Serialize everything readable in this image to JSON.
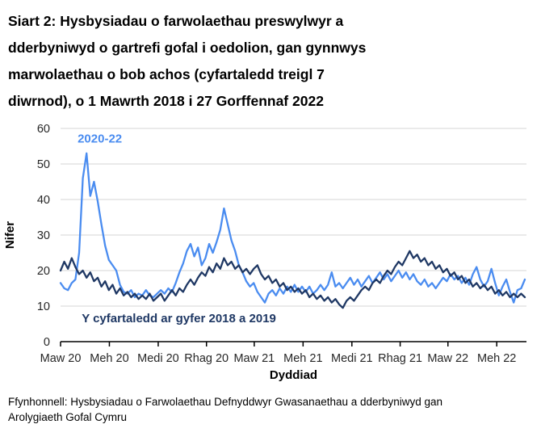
{
  "title": "Siart 2: Hysbysiadau o farwolaethau preswylwyr a dderbyniwyd o gartrefi gofal i oedolion, gan gynnwys marwolaethau o bob achos (cyfartaledd treigl 7 diwrnod), o 1 Mawrth 2018 i 27 Gorffennaf 2022",
  "title_lines": [
    "Siart 2: Hysbysiadau o farwolaethau preswylwyr a",
    "dderbyniwyd o gartrefi gofal i oedolion, gan gynnwys",
    "marwolaethau o bob achos (cyfartaledd treigl 7",
    "diwrnod), o 1 Mawrth 2018 i 27 Gorffennaf 2022"
  ],
  "source_lines": [
    "Ffynhonnell: Hysbysiadau o Farwolaethau Defnyddwyr Gwasanaethau a dderbyniwyd gan",
    "Arolygiaeth Gofal Cymru"
  ],
  "chart_data": {
    "type": "line",
    "xlabel": "Dyddiad",
    "ylabel": "Nifer",
    "ylim": [
      0,
      60
    ],
    "y_ticks": [
      0,
      10,
      20,
      30,
      40,
      50,
      60
    ],
    "x_tick_labels": [
      "Maw 20",
      "Meh 20",
      "Medi 20",
      "Rhag 20",
      "Maw 21",
      "Meh 21",
      "Medi 21",
      "Rhag 21",
      "Maw 22",
      "Meh 22"
    ],
    "x_tick_days": [
      0,
      92,
      184,
      275,
      365,
      457,
      549,
      640,
      730,
      822
    ],
    "x_total_days": 878,
    "x_range_note": "1 Mawrth 2020 - 27 Gorffennaf 2022 on axis; values are 7-day rolling averages",
    "sample_interval_days": 7,
    "grid": "horizontal",
    "legend_position": "inline-annotations",
    "colors": {
      "series_2020_22": "#4a8cf0",
      "series_avg_2018_19": "#1f3864",
      "gridline": "#d6d6d6",
      "axis": "#000000"
    },
    "series": [
      {
        "id": "2020-22",
        "name": "2020-22",
        "color": "#4a8cf0",
        "values": [
          16.5,
          15,
          14.5,
          16.5,
          17.5,
          25,
          46,
          53,
          41,
          45,
          39.5,
          33,
          27,
          23,
          21.5,
          20,
          16,
          14,
          13.5,
          14.5,
          12.5,
          13.5,
          13,
          14.5,
          13,
          12.5,
          13.5,
          14.5,
          13.5,
          15,
          14,
          16.5,
          19.5,
          22,
          25.5,
          27.5,
          24,
          26.5,
          21.5,
          23.5,
          27.5,
          25,
          28,
          31.5,
          37.5,
          33,
          28.5,
          25.5,
          21.5,
          19.5,
          17,
          15.5,
          16.5,
          14,
          12.5,
          11,
          13.5,
          14.5,
          13,
          15,
          13.5,
          15.5,
          14,
          16,
          14,
          15.5,
          14,
          15.5,
          13.5,
          14.5,
          16,
          14.5,
          16,
          19.5,
          15.5,
          16.5,
          15,
          16.5,
          18,
          16,
          17.5,
          15.5,
          17,
          18.5,
          16.5,
          18,
          19.5,
          17.5,
          19,
          17,
          18.5,
          20,
          18,
          19.5,
          17.5,
          19,
          17,
          16,
          17.5,
          15.5,
          16.5,
          15,
          16.5,
          18,
          17,
          19,
          17.5,
          18.5,
          16.5,
          18,
          16,
          19,
          21,
          17.5,
          15.5,
          17,
          20.5,
          16.5,
          13,
          15.5,
          17.5,
          14,
          11,
          14.5,
          15,
          17.5
        ]
      },
      {
        "id": "avg-2018-2019",
        "name": "Y cyfartaledd ar gyfer 2018 a 2019",
        "color": "#1f3864",
        "values": [
          20,
          22.5,
          20.5,
          23.5,
          21,
          19,
          20,
          18,
          19.5,
          17,
          18,
          15.5,
          17,
          14.5,
          16,
          13.5,
          15,
          13,
          14,
          12.5,
          13.5,
          12,
          13,
          12,
          13.5,
          11.5,
          12.5,
          13.5,
          11.5,
          13,
          14.5,
          13,
          15,
          14,
          16,
          17.5,
          16,
          18,
          19.5,
          18.5,
          21,
          19.5,
          22,
          20.5,
          23.5,
          21.5,
          22.5,
          20.5,
          21.5,
          19.5,
          20.5,
          19,
          20.5,
          21.5,
          19,
          17.5,
          18.5,
          16.5,
          17.5,
          15.5,
          16.5,
          14.5,
          15.5,
          14,
          15,
          13.5,
          14.5,
          12.5,
          13.5,
          12,
          13,
          11.5,
          12.5,
          11,
          12,
          10.5,
          9.5,
          11.5,
          12.5,
          11.5,
          13,
          14.5,
          15.5,
          14.5,
          16.5,
          17.5,
          16.5,
          18.5,
          20,
          19,
          21,
          22.5,
          21.5,
          23.5,
          25.5,
          23.5,
          24.5,
          22.5,
          23.5,
          21.5,
          22.5,
          20.5,
          21.5,
          19.5,
          20.5,
          18.5,
          19.5,
          17.5,
          18.5,
          16.5,
          17.5,
          15.5,
          16.5,
          15,
          16,
          14.5,
          15.5,
          13.5,
          14.5,
          13,
          14,
          12.5,
          13.5,
          12.5,
          13.5,
          12.5
        ]
      }
    ],
    "annotations": [
      {
        "text": "2020-22",
        "color": "#4a8cf0",
        "day": 74,
        "value": 56,
        "anchor": "middle"
      },
      {
        "text": "Y cyfartaledd ar gyfer 2018 a 2019",
        "color": "#1f3864",
        "day": 223,
        "value": 5.5,
        "anchor": "middle"
      }
    ]
  }
}
